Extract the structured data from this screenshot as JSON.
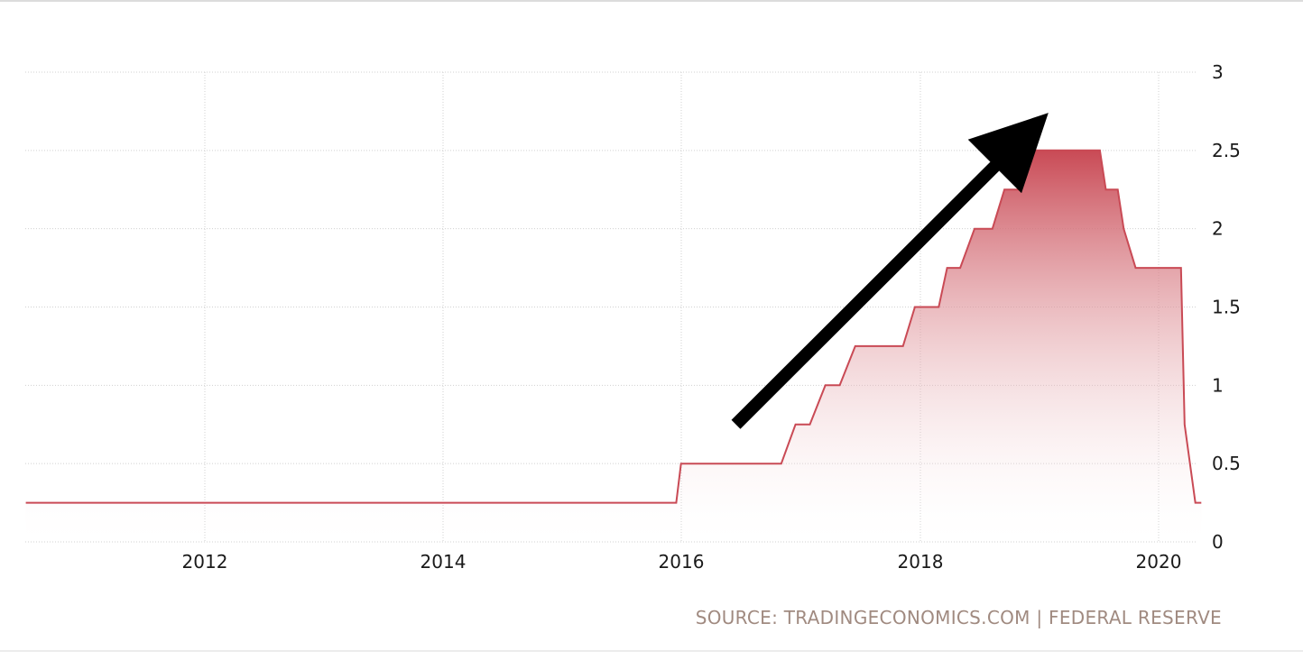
{
  "source": "SOURCE: TRADINGECONOMICS.COM | FEDERAL RESERVE",
  "colors": {
    "line": "#c94a55",
    "fill_top": "#c94a55",
    "fill_bottom": "#ffffff",
    "grid": "#d0d0d0",
    "arrow": "#000000"
  },
  "chart_data": {
    "type": "area",
    "title": "",
    "xlabel": "",
    "ylabel": "",
    "x_ticks": [
      "2012",
      "2014",
      "2016",
      "2018",
      "2020"
    ],
    "y_ticks": [
      "0",
      "0.5",
      "1",
      "1.5",
      "2",
      "2.5",
      "3"
    ],
    "xlim": [
      2010.5,
      2020.35
    ],
    "ylim": [
      0,
      3
    ],
    "grid": true,
    "y_axis_side": "right",
    "series": [
      {
        "x": [
          2010.5,
          2015.95,
          2015.99,
          2016.83,
          2016.95,
          2017.07,
          2017.2,
          2017.32,
          2017.45,
          2017.85,
          2017.95,
          2018.15,
          2018.22,
          2018.33,
          2018.45,
          2018.6,
          2018.7,
          2018.83,
          2018.93,
          2019.0,
          2019.5,
          2019.55,
          2019.65,
          2019.7,
          2019.8,
          2019.9,
          2020.18,
          2020.21,
          2020.3,
          2020.35
        ],
        "y": [
          0.25,
          0.25,
          0.5,
          0.5,
          0.75,
          0.75,
          1.0,
          1.0,
          1.25,
          1.25,
          1.5,
          1.5,
          1.75,
          1.75,
          2.0,
          2.0,
          2.25,
          2.25,
          2.5,
          2.5,
          2.5,
          2.25,
          2.25,
          2.0,
          1.75,
          1.75,
          1.75,
          0.75,
          0.25,
          0.25
        ]
      }
    ],
    "annotations": [
      {
        "type": "arrow",
        "direction": "up-right",
        "from": [
          2016.45,
          0.75
        ],
        "to": [
          2018.95,
          2.65
        ]
      }
    ]
  }
}
